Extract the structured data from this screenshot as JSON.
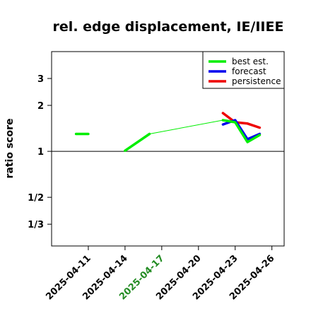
{
  "chart_data": {
    "type": "line",
    "title": "rel. edge displacement, IE/IIEE",
    "ylabel": "ratio score",
    "xlabel": "",
    "y_scale": "log",
    "yticks": [
      {
        "value": 0.3333,
        "label": "1/3"
      },
      {
        "value": 0.5,
        "label": "1/2"
      },
      {
        "value": 1,
        "label": "1"
      },
      {
        "value": 2,
        "label": "2"
      },
      {
        "value": 3,
        "label": "3"
      }
    ],
    "ylim": [
      0.24,
      4.5
    ],
    "xticks": [
      {
        "date": "2025-04-11",
        "label": "2025-04-11",
        "color": "#000000"
      },
      {
        "date": "2025-04-14",
        "label": "2025-04-14",
        "color": "#000000"
      },
      {
        "date": "2025-04-17",
        "label": "2025-04-17",
        "color": "#228B22"
      },
      {
        "date": "2025-04-20",
        "label": "2025-04-20",
        "color": "#000000"
      },
      {
        "date": "2025-04-23",
        "label": "2025-04-23",
        "color": "#000000"
      },
      {
        "date": "2025-04-26",
        "label": "2025-04-26",
        "color": "#000000"
      }
    ],
    "xlim": [
      "2025-04-08",
      "2025-04-27"
    ],
    "reference_line": 1,
    "legend": {
      "position": "top-right",
      "entries": [
        {
          "label": "best est.",
          "color": "#00EE00"
        },
        {
          "label": "forecast",
          "color": "#0000EE"
        },
        {
          "label": "persistence",
          "color": "#EE0000"
        }
      ]
    },
    "connector": {
      "color": "#00EE00",
      "points": [
        [
          "2025-04-14",
          1.01
        ],
        [
          "2025-04-16",
          1.3
        ],
        [
          "2025-04-22",
          1.6
        ]
      ]
    },
    "series": [
      {
        "name": "best est.",
        "color": "#00EE00",
        "segments": [
          [
            [
              "2025-04-10",
              1.3
            ],
            [
              "2025-04-11",
              1.3
            ]
          ],
          [
            [
              "2025-04-14",
              1.01
            ],
            [
              "2025-04-16",
              1.3
            ]
          ],
          [
            [
              "2025-04-22",
              1.6
            ],
            [
              "2025-04-23",
              1.55
            ],
            [
              "2025-04-24",
              1.15
            ],
            [
              "2025-04-25",
              1.28
            ]
          ]
        ]
      },
      {
        "name": "forecast",
        "color": "#0000EE",
        "segments": [
          [
            [
              "2025-04-22",
              1.5
            ],
            [
              "2025-04-23",
              1.6
            ],
            [
              "2025-04-24",
              1.2
            ],
            [
              "2025-04-25",
              1.3
            ]
          ]
        ]
      },
      {
        "name": "persistence",
        "color": "#EE0000",
        "segments": [
          [
            [
              "2025-04-22",
              1.78
            ],
            [
              "2025-04-23",
              1.55
            ],
            [
              "2025-04-24",
              1.52
            ],
            [
              "2025-04-25",
              1.43
            ]
          ]
        ]
      }
    ]
  }
}
